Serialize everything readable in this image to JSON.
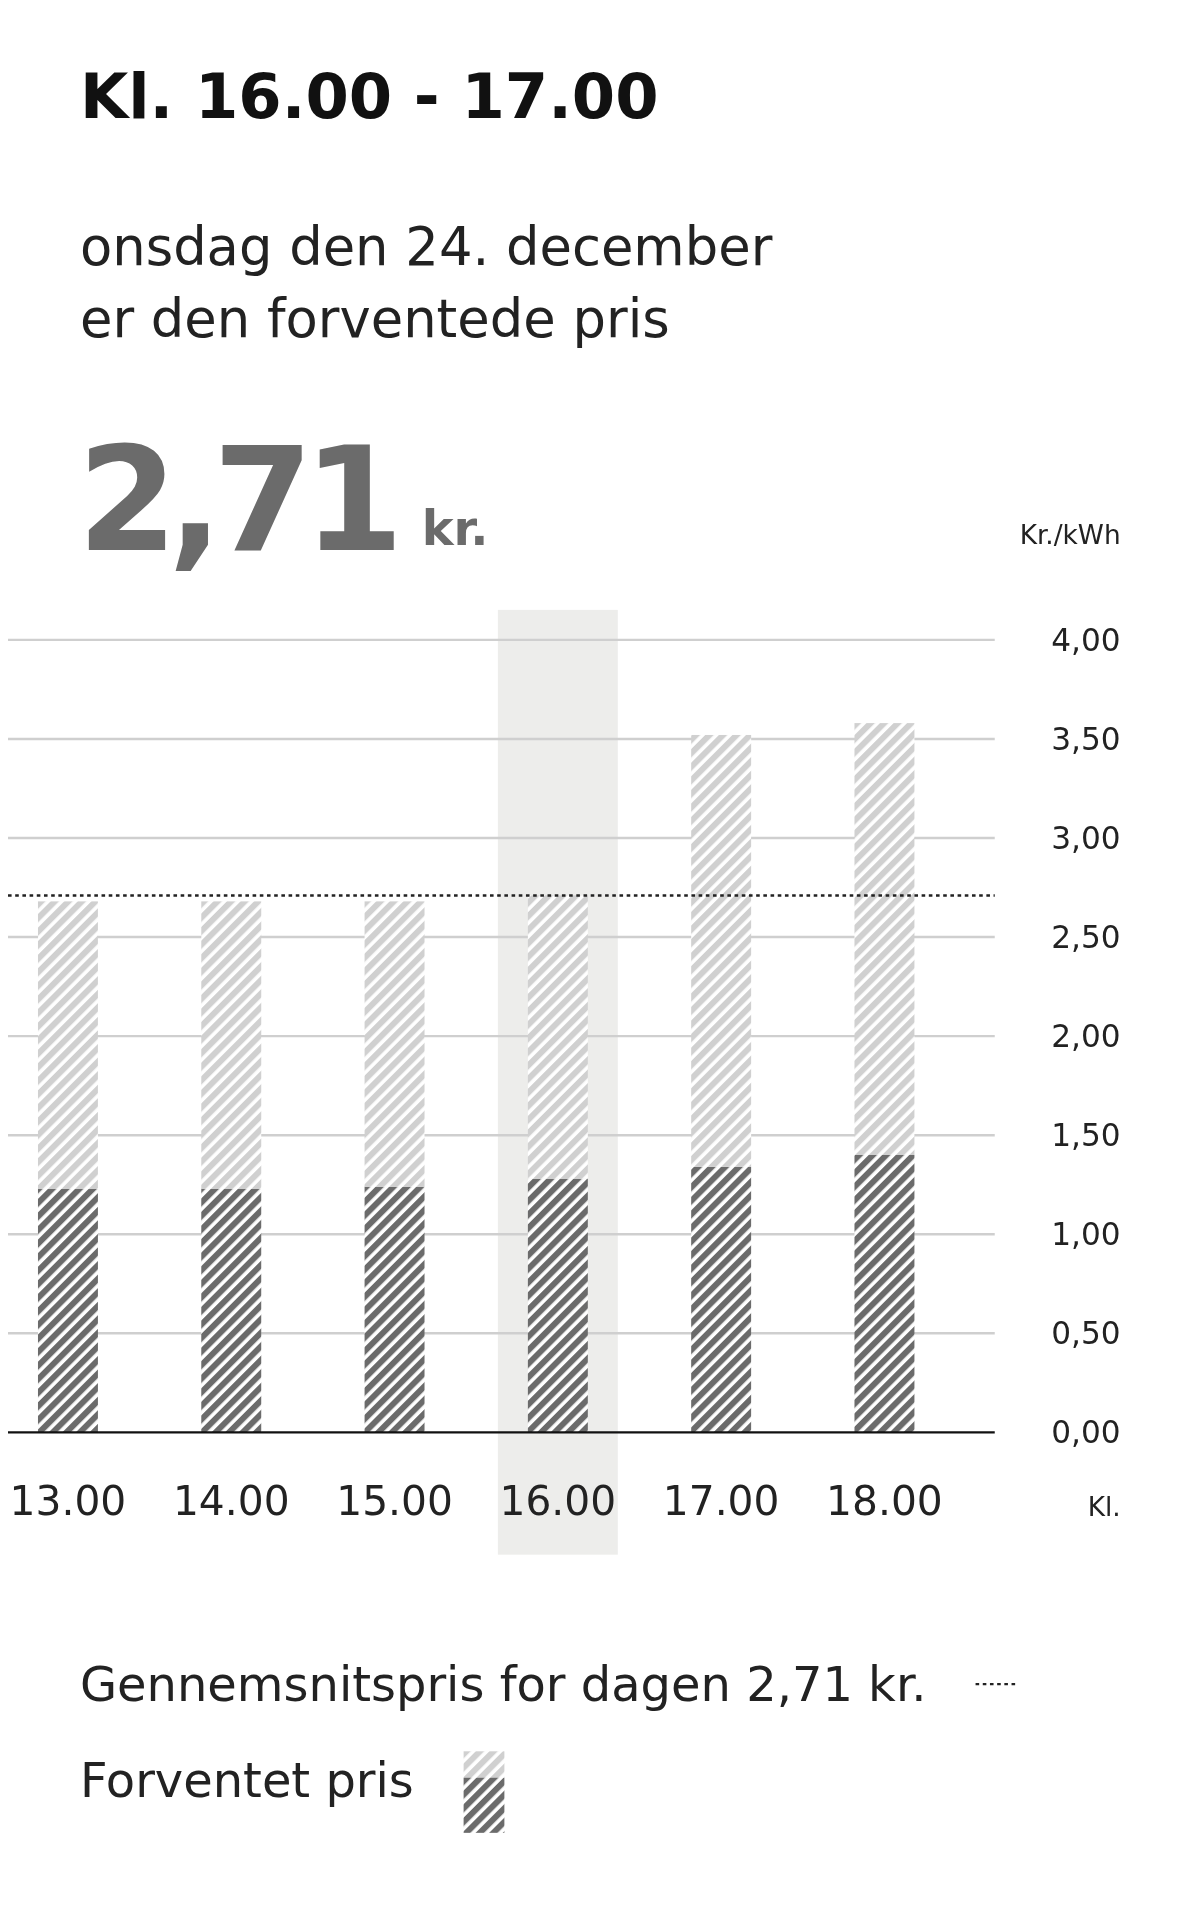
{
  "chart_data": {
    "type": "bar",
    "title": "Kl. 16.00 - 17.00",
    "subtitle": "onsdag den 24. december\ner den forventede pris",
    "annotations": [
      "2,71",
      "kr."
    ],
    "ylabel": "Kr./kWh",
    "xlabel": "Kl.",
    "categories": [
      "13.00",
      "14.00",
      "15.00",
      "16.00",
      "17.00",
      "18.00"
    ],
    "stacked": true,
    "series": [
      {
        "name": "Forventet pris",
        "color": "#6b6b6b",
        "values": [
          1.23,
          1.23,
          1.24,
          1.28,
          1.34,
          1.4
        ]
      },
      {
        "color": "#d0d0d0",
        "values": [
          1.45,
          1.45,
          1.44,
          1.43,
          2.18,
          2.18
        ]
      }
    ],
    "ylim": [
      0,
      4
    ],
    "yticks": [
      {
        "value": 0,
        "label": "0,00"
      },
      {
        "value": 0.5,
        "label": "0,50"
      },
      {
        "value": 1,
        "label": "1,00"
      },
      {
        "value": 1.5,
        "label": "1,50"
      },
      {
        "value": 2,
        "label": "2,00"
      },
      {
        "value": 2.5,
        "label": "2,50"
      },
      {
        "value": 3,
        "label": "3,00"
      },
      {
        "value": 3.5,
        "label": "3,50"
      },
      {
        "value": 4,
        "label": "4,00"
      }
    ],
    "grid": "y",
    "bands": [
      {
        "axis": "x",
        "from": "16.00",
        "to": "16.00",
        "color": "#ededeb"
      }
    ],
    "ref_lines": [
      {
        "axis": "y",
        "value": 2.71,
        "label": "Gennemsnitspris for dagen 2,71 kr.",
        "line_style": "dotted",
        "color": "#222222"
      }
    ],
    "legend": "bottom"
  }
}
